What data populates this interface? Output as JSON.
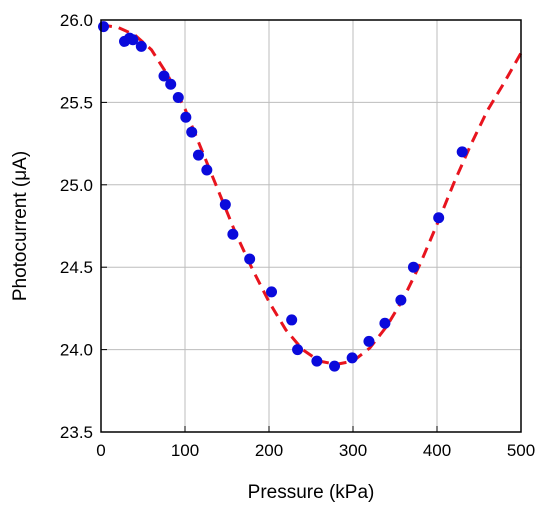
{
  "chart_data": {
    "type": "scatter",
    "xlabel": "Pressure (kPa)",
    "ylabel": "Photocurrent (μA)",
    "xlim": [
      0,
      500
    ],
    "ylim": [
      23.5,
      26.0
    ],
    "x_ticks": [
      0,
      100,
      200,
      300,
      400,
      500
    ],
    "y_ticks": [
      23.5,
      24.0,
      24.5,
      25.0,
      25.5,
      26.0
    ],
    "x_tick_labels": [
      "0",
      "100",
      "200",
      "300",
      "400",
      "500"
    ],
    "y_tick_labels": [
      "23.5",
      "24.0",
      "24.5",
      "25.0",
      "25.5",
      "26.0"
    ],
    "grid": true,
    "colors": {
      "points": "#0a0adc",
      "fit": "#e8141e",
      "grid": "#bdbdbd",
      "axes": "#000000"
    },
    "series": [
      {
        "kind": "scatter",
        "points": [
          [
            3,
            25.96
          ],
          [
            28,
            25.87
          ],
          [
            34,
            25.89
          ],
          [
            38,
            25.88
          ],
          [
            48,
            25.84
          ],
          [
            75,
            25.66
          ],
          [
            83,
            25.61
          ],
          [
            92,
            25.53
          ],
          [
            101,
            25.41
          ],
          [
            108,
            25.32
          ],
          [
            116,
            25.18
          ],
          [
            126,
            25.09
          ],
          [
            148,
            24.88
          ],
          [
            157,
            24.7
          ],
          [
            177,
            24.55
          ],
          [
            203,
            24.35
          ],
          [
            227,
            24.18
          ],
          [
            234,
            24.0
          ],
          [
            257,
            23.93
          ],
          [
            278,
            23.9
          ],
          [
            299,
            23.95
          ],
          [
            319,
            24.05
          ],
          [
            338,
            24.16
          ],
          [
            357,
            24.3
          ],
          [
            372,
            24.5
          ],
          [
            402,
            24.8
          ],
          [
            430,
            25.2
          ]
        ]
      },
      {
        "kind": "line",
        "style": "dashed",
        "points": [
          [
            0,
            25.97
          ],
          [
            20,
            25.955
          ],
          [
            40,
            25.91
          ],
          [
            60,
            25.82
          ],
          [
            80,
            25.66
          ],
          [
            100,
            25.46
          ],
          [
            120,
            25.21
          ],
          [
            140,
            24.96
          ],
          [
            160,
            24.71
          ],
          [
            180,
            24.49
          ],
          [
            200,
            24.29
          ],
          [
            220,
            24.12
          ],
          [
            240,
            24.0
          ],
          [
            260,
            23.93
          ],
          [
            280,
            23.91
          ],
          [
            300,
            23.93
          ],
          [
            320,
            24.01
          ],
          [
            340,
            24.14
          ],
          [
            360,
            24.31
          ],
          [
            380,
            24.52
          ],
          [
            400,
            24.76
          ],
          [
            420,
            25.01
          ],
          [
            440,
            25.24
          ],
          [
            460,
            25.45
          ],
          [
            480,
            25.62
          ],
          [
            500,
            25.8
          ]
        ]
      }
    ]
  }
}
